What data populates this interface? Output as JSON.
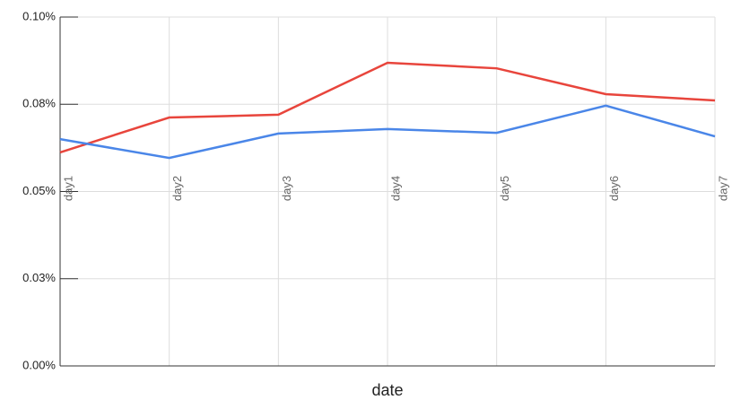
{
  "chart_data": {
    "type": "line",
    "x_label": "date",
    "categories": [
      "day1",
      "day2",
      "day3",
      "day4",
      "day5",
      "day6",
      "day7"
    ],
    "series": [
      {
        "color": "#e8453c",
        "values": [
          0.0612,
          0.0712,
          0.072,
          0.0869,
          0.0853,
          0.0779,
          0.0761
        ]
      },
      {
        "color": "#4a86e8",
        "values": [
          0.065,
          0.0596,
          0.0666,
          0.0679,
          0.0668,
          0.0746,
          0.0658
        ]
      }
    ],
    "ylim": [
      0,
      0.1
    ],
    "yticks": [
      {
        "value": 0,
        "label": "0.00%"
      },
      {
        "value": 0.025,
        "label": "0.03%"
      },
      {
        "value": 0.05,
        "label": "0.05%"
      },
      {
        "value": 0.075,
        "label": "0.08%"
      },
      {
        "value": 0.1,
        "label": "0.10%"
      }
    ],
    "grid": true
  }
}
